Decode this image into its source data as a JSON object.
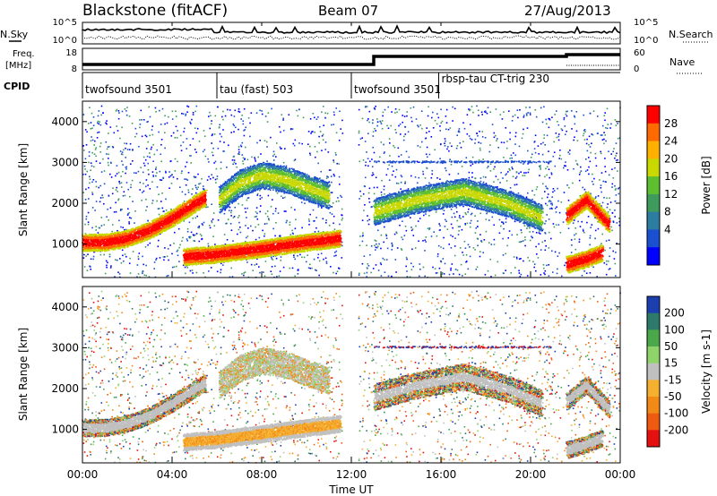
{
  "header": {
    "station": "Blackstone (fitACF)",
    "beam": "Beam 07",
    "date": "27/Aug/2013"
  },
  "side_labels": {
    "nsky": "N.Sky",
    "nsearch": "N.Search",
    "freq": "Freq.",
    "freq_unit": "[MHz]",
    "nave": "Nave",
    "cpid": "CPID"
  },
  "noise_axis": {
    "left_top": "10^5",
    "left_bottom": "10^0",
    "right_top": "10^5",
    "right_bottom": "10^0"
  },
  "freq_axis": {
    "left_top": "18",
    "left_bottom": "8",
    "right_top": "60",
    "right_bottom": "0"
  },
  "cpid_segments": [
    {
      "label": "twofsound 3501",
      "start_hour": 0.0,
      "end_hour": 6.0
    },
    {
      "label": "tau (fast) 503",
      "start_hour": 6.0,
      "end_hour": 12.0
    },
    {
      "label": "twofsound 3501",
      "start_hour": 12.0,
      "end_hour": 15.9
    },
    {
      "label": "rbsp-tau CT-trig 230",
      "start_hour": 15.9,
      "end_hour": 24.0
    }
  ],
  "chart_data": [
    {
      "type": "heatmap",
      "panel": "power",
      "xlabel": "Time UT",
      "ylabel": "Slant Range [km]",
      "xlim": [
        0,
        24
      ],
      "ylim": [
        180,
        4500
      ],
      "x_ticks": [
        "00:00",
        "04:00",
        "08:00",
        "12:00",
        "16:00",
        "20:00",
        "00:00"
      ],
      "y_ticks": [
        "1000",
        "2000",
        "3000",
        "4000"
      ],
      "colorbar": {
        "label": "Power [dB]",
        "ticks": [
          "28",
          "24",
          "20",
          "16",
          "12",
          "8",
          "4"
        ],
        "colors": [
          "#ff0000",
          "#ff6a00",
          "#ffb000",
          "#c8d800",
          "#5dbf2f",
          "#3e9b5c",
          "#2d7da0",
          "#1a4fd0",
          "#0000ff"
        ]
      },
      "features": [
        {
          "name": "main echo band",
          "hours": [
            0,
            1,
            2,
            3,
            4,
            5,
            5.5
          ],
          "range_km": [
            1050,
            1050,
            1150,
            1350,
            1650,
            2000,
            2150
          ],
          "level": "high"
        },
        {
          "name": "evening band",
          "hours": [
            6.1,
            7,
            8,
            9,
            10,
            11
          ],
          "range_km": [
            2100,
            2500,
            2700,
            2600,
            2400,
            2200
          ],
          "level": "mid"
        },
        {
          "name": "near range band",
          "hours": [
            4.5,
            6,
            8,
            10,
            11.5
          ],
          "range_km": [
            700,
            760,
            900,
            1050,
            1150
          ],
          "level": "high"
        },
        {
          "name": "afternoon layer",
          "hours": [
            13,
            15,
            17,
            19,
            20.5
          ],
          "range_km": [
            1800,
            2100,
            2300,
            2000,
            1650
          ],
          "level": "mid"
        },
        {
          "name": "near range patch",
          "hours": [
            21.6,
            22.5,
            23.2
          ],
          "range_km": [
            500,
            650,
            800
          ],
          "level": "high"
        },
        {
          "name": "late band",
          "hours": [
            21.6,
            22.5,
            23.5
          ],
          "range_km": [
            1700,
            2100,
            1500
          ],
          "level": "high"
        }
      ]
    },
    {
      "type": "heatmap",
      "panel": "velocity",
      "xlabel": "Time UT",
      "ylabel": "Slant Range [km]",
      "xlim": [
        0,
        24
      ],
      "ylim": [
        180,
        4500
      ],
      "x_ticks": [
        "00:00",
        "04:00",
        "08:00",
        "12:00",
        "16:00",
        "20:00",
        "00:00"
      ],
      "y_ticks": [
        "1000",
        "2000",
        "3000",
        "4000"
      ],
      "colorbar": {
        "label": "Velocity [m s-1]",
        "ticks": [
          "200",
          "100",
          "50",
          "15",
          "-15",
          "-50",
          "-100",
          "-200"
        ],
        "colors": [
          "#1c3fb0",
          "#2e7a6a",
          "#4aa84a",
          "#8fd46a",
          "#c0c0c0",
          "#f5b030",
          "#f28a18",
          "#ee5a10",
          "#e51010"
        ]
      },
      "features": [
        {
          "name": "ground scatter band",
          "hours": [
            0,
            1,
            2,
            3,
            4,
            5,
            5.5
          ],
          "range_km": [
            1050,
            1050,
            1150,
            1350,
            1650,
            2000,
            2150
          ],
          "value": "-15 to 15"
        },
        {
          "name": "negative velocity region",
          "hours": [
            4.5,
            6,
            8,
            10,
            11.5
          ],
          "range_km": [
            700,
            760,
            900,
            1050,
            1150
          ],
          "value": "-50 to -100"
        },
        {
          "name": "ground scatter patch",
          "hours": [
            21.6,
            22.5,
            23.2
          ],
          "range_km": [
            500,
            650,
            800
          ],
          "value": "-15 to 15"
        }
      ]
    }
  ]
}
